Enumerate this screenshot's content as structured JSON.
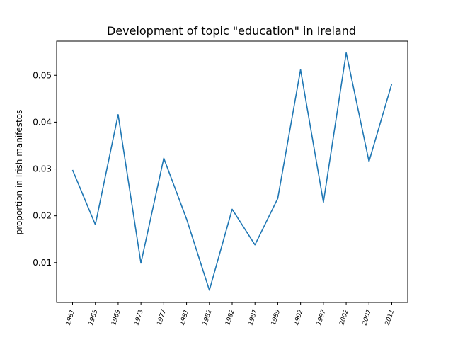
{
  "chart_data": {
    "type": "line",
    "title": "Development of topic \"education\" in Ireland",
    "xlabel": "",
    "ylabel": "proportion in Irish manifestos",
    "categories": [
      "1961",
      "1965",
      "1969",
      "1973",
      "1977",
      "1981",
      "1982",
      "1982",
      "1987",
      "1989",
      "1992",
      "1997",
      "2002",
      "2007",
      "2011"
    ],
    "series": [
      {
        "values": [
          0.0298,
          0.0181,
          0.0416,
          0.0099,
          0.0323,
          0.0193,
          0.0041,
          0.0214,
          0.0138,
          0.0237,
          0.0512,
          0.0229,
          0.0548,
          0.0316,
          0.0482
        ]
      }
    ],
    "yticks": [
      "0.01",
      "0.02",
      "0.03",
      "0.04",
      "0.05"
    ],
    "ylim": [
      0.0015,
      0.0573
    ],
    "grid": false,
    "colors": {
      "line": "#1f77b4"
    }
  }
}
